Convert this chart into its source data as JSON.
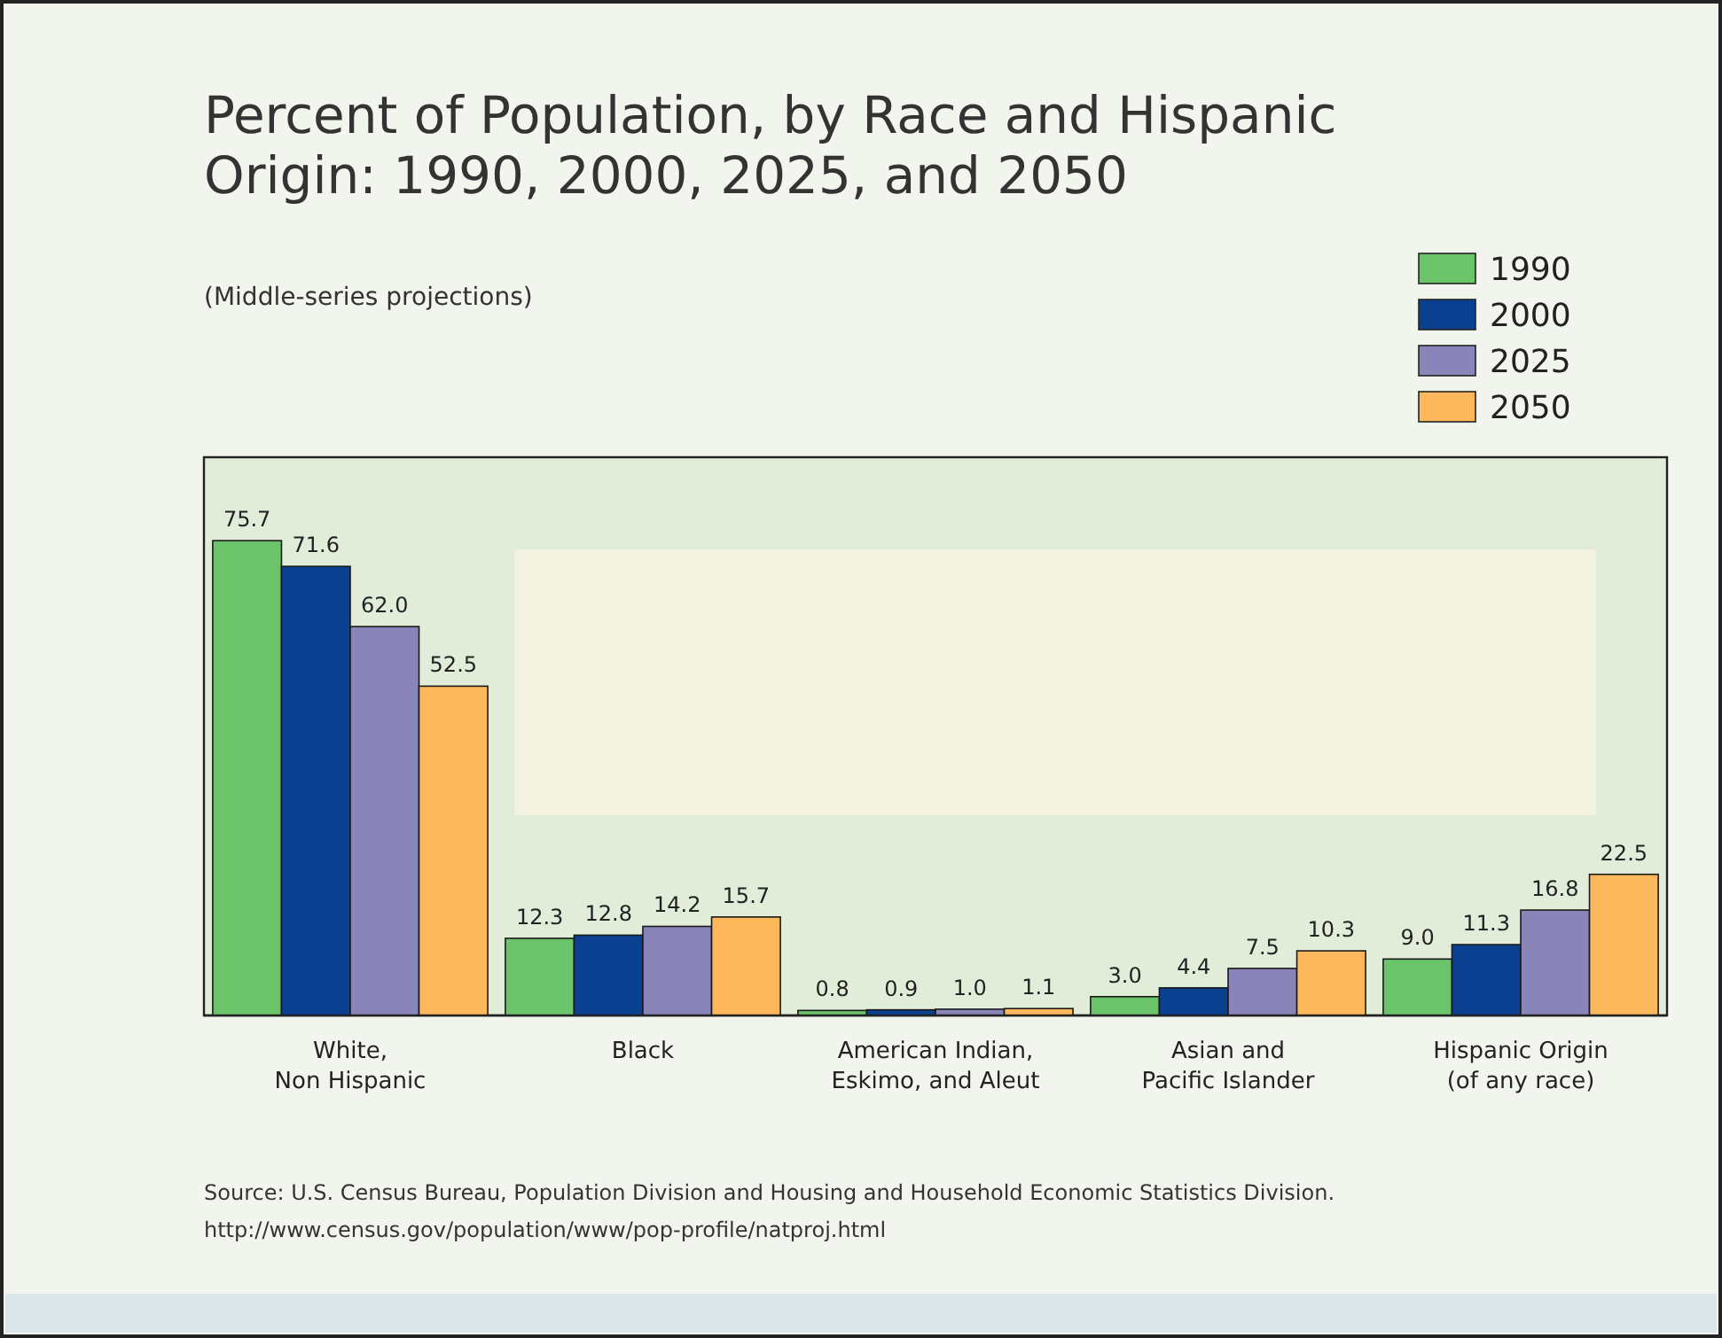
{
  "chart_data": {
    "type": "bar",
    "title": "Percent of Population, by Race and Hispanic\nOrigin: 1990, 2000, 2025, and 2050",
    "subtitle": "(Middle-series projections)",
    "categories": [
      "White,\nNon Hispanic",
      "Black",
      "American Indian,\nEskimo, and Aleut",
      "Asian and\nPacific Islander",
      "Hispanic Origin\n(of any race)"
    ],
    "series": [
      {
        "name": "1990",
        "color": "#6cc46a",
        "values": [
          75.7,
          12.3,
          0.8,
          3.0,
          9.0
        ],
        "value_labels": [
          "75.7",
          "12.3",
          "0.8",
          "3.0",
          "9.0"
        ]
      },
      {
        "name": "2000",
        "color": "#0b3f8f",
        "values": [
          71.6,
          12.8,
          0.9,
          4.4,
          11.3
        ],
        "value_labels": [
          "71.6",
          "12.8",
          "0.9",
          "4.4",
          "11.3"
        ]
      },
      {
        "name": "2025",
        "color": "#8985b9",
        "values": [
          62.0,
          14.2,
          1.0,
          7.5,
          16.8
        ],
        "value_labels": [
          "62.0",
          "14.2",
          "1.0",
          "7.5",
          "16.8"
        ]
      },
      {
        "name": "2050",
        "color": "#fdb75c",
        "values": [
          52.5,
          15.7,
          1.1,
          10.3,
          22.5
        ],
        "value_labels": [
          "52.5",
          "15.7",
          "1.1",
          "10.3",
          "22.5"
        ]
      }
    ],
    "ylim": [
      0,
      89
    ],
    "tick_labels": "x",
    "legend": "top right",
    "annotations": [
      "Source: U.S. Census Bureau, Population Division and Housing and Household Economic Statistics Division.",
      "http://www.census.gov/population/www/pop-profile/natproj.html"
    ]
  }
}
